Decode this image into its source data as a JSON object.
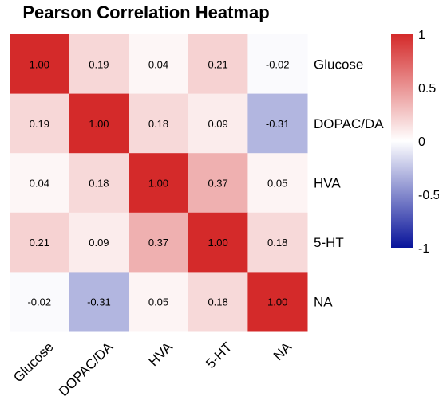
{
  "chart_data": {
    "type": "heatmap",
    "title": "Pearson Correlation Heatmap",
    "rows": [
      "Glucose",
      "DOPAC/DA",
      "HVA",
      "5-HT",
      "NA"
    ],
    "columns": [
      "Glucose",
      "DOPAC/DA",
      "HVA",
      "5-HT",
      "NA"
    ],
    "values": [
      [
        1.0,
        0.19,
        0.04,
        0.21,
        -0.02
      ],
      [
        0.19,
        1.0,
        0.18,
        0.09,
        -0.31
      ],
      [
        0.04,
        0.18,
        1.0,
        0.37,
        0.05
      ],
      [
        0.21,
        0.09,
        0.37,
        1.0,
        0.18
      ],
      [
        -0.02,
        -0.31,
        0.05,
        0.18,
        1.0
      ]
    ],
    "value_labels": [
      [
        "1.00",
        "0.19",
        "0.04",
        "0.21",
        "-0.02"
      ],
      [
        "0.19",
        "1.00",
        "0.18",
        "0.09",
        "-0.31"
      ],
      [
        "0.04",
        "0.18",
        "1.00",
        "0.37",
        "0.05"
      ],
      [
        "0.21",
        "0.09",
        "0.37",
        "1.00",
        "0.18"
      ],
      [
        "-0.02",
        "-0.31",
        "0.05",
        "0.18",
        "1.00"
      ]
    ],
    "colorbar": {
      "range": [
        -1,
        1
      ],
      "ticks": [
        1,
        0.5,
        0,
        -0.5,
        -1
      ],
      "tick_labels": [
        "1",
        "0.5",
        "0",
        "-0.5",
        "-1"
      ],
      "colors": {
        "low": "#08139a",
        "mid": "#ffffff",
        "high": "#d42a2a"
      }
    },
    "legend_position": "right"
  }
}
